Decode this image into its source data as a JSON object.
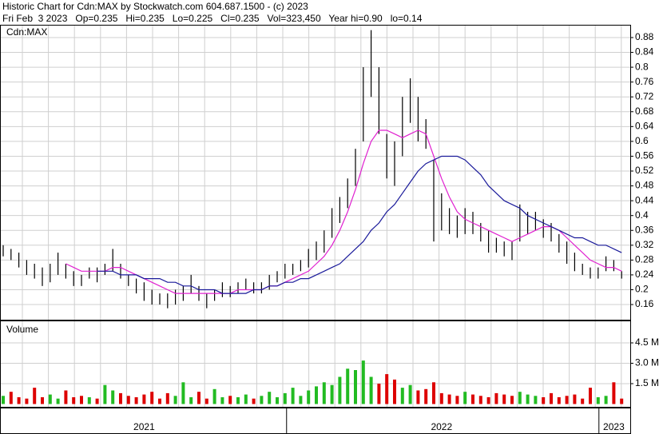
{
  "chart_data": {
    "type": "hilo",
    "title": "Historic Chart for Cdn:MAX by Stockwatch.com 604.687.1500 - (c) 2023",
    "subtitle": "Fri Feb  3 2023   Op=0.235   Hi=0.235   Lo=0.225   Cl=0.235   Vol=323,450   Year hi=0.90   lo=0.14",
    "label": "Cdn:MAX",
    "color": "#000000",
    "grid": true,
    "categories": [
      null,
      null,
      null,
      null,
      null,
      null,
      null,
      null,
      null,
      null,
      null,
      null,
      null,
      null,
      null,
      null,
      null,
      null,
      "2021",
      null,
      null,
      null,
      null,
      null,
      null,
      null,
      null,
      null,
      null,
      null,
      null,
      null,
      null,
      null,
      null,
      null,
      null,
      null,
      null,
      null,
      null,
      null,
      null,
      null,
      null,
      null,
      null,
      null,
      null,
      null,
      null,
      null,
      null,
      null,
      null,
      null,
      "2022",
      null,
      null,
      null,
      null,
      null,
      null,
      null,
      null,
      null,
      null,
      null,
      null,
      null,
      null,
      null,
      null,
      null,
      null,
      null,
      null,
      null,
      "2023",
      null
    ],
    "high": [
      0.32,
      0.31,
      0.3,
      0.28,
      0.27,
      0.26,
      0.27,
      0.3,
      0.27,
      0.25,
      0.24,
      0.26,
      0.26,
      0.27,
      0.31,
      0.27,
      0.24,
      0.23,
      0.22,
      0.2,
      0.19,
      0.19,
      0.2,
      0.21,
      0.24,
      0.21,
      0.19,
      0.2,
      0.22,
      0.21,
      0.22,
      0.23,
      0.22,
      0.22,
      0.24,
      0.25,
      0.27,
      0.27,
      0.28,
      0.31,
      0.33,
      0.36,
      0.42,
      0.45,
      0.5,
      0.58,
      0.8,
      0.9,
      0.8,
      0.62,
      0.6,
      0.72,
      0.77,
      0.72,
      0.66,
      0.55,
      0.46,
      0.42,
      0.4,
      0.42,
      0.41,
      0.38,
      0.36,
      0.34,
      0.33,
      0.33,
      0.43,
      0.41,
      0.41,
      0.39,
      0.38,
      0.35,
      0.33,
      0.3,
      0.27,
      0.26,
      0.26,
      0.29,
      0.28,
      0.25
    ],
    "low": [
      0.29,
      0.28,
      0.26,
      0.24,
      0.23,
      0.21,
      0.22,
      0.24,
      0.23,
      0.21,
      0.21,
      0.23,
      0.22,
      0.24,
      0.25,
      0.23,
      0.21,
      0.19,
      0.17,
      0.16,
      0.16,
      0.15,
      0.16,
      0.17,
      0.19,
      0.17,
      0.15,
      0.17,
      0.18,
      0.18,
      0.19,
      0.2,
      0.19,
      0.19,
      0.2,
      0.22,
      0.23,
      0.24,
      0.25,
      0.26,
      0.28,
      0.3,
      0.34,
      0.38,
      0.42,
      0.48,
      0.6,
      0.72,
      0.62,
      0.5,
      0.48,
      0.56,
      0.65,
      0.6,
      0.58,
      0.33,
      0.36,
      0.35,
      0.34,
      0.35,
      0.35,
      0.33,
      0.3,
      0.3,
      0.29,
      0.28,
      0.33,
      0.35,
      0.36,
      0.34,
      0.33,
      0.3,
      0.27,
      0.25,
      0.24,
      0.23,
      0.23,
      0.25,
      0.25,
      0.23
    ],
    "ma_short": {
      "color": "#e020d0",
      "values": [
        null,
        null,
        null,
        null,
        null,
        null,
        null,
        null,
        0.27,
        0.26,
        0.25,
        0.25,
        0.25,
        0.25,
        0.26,
        0.26,
        0.25,
        0.24,
        0.23,
        0.22,
        0.21,
        0.2,
        0.19,
        0.19,
        0.19,
        0.19,
        0.19,
        0.19,
        0.19,
        0.19,
        0.2,
        0.2,
        0.2,
        0.2,
        0.21,
        0.21,
        0.22,
        0.23,
        0.24,
        0.25,
        0.27,
        0.29,
        0.32,
        0.36,
        0.41,
        0.47,
        0.54,
        0.6,
        0.63,
        0.63,
        0.62,
        0.61,
        0.62,
        0.63,
        0.62,
        0.56,
        0.5,
        0.45,
        0.41,
        0.39,
        0.38,
        0.37,
        0.36,
        0.35,
        0.34,
        0.33,
        0.34,
        0.35,
        0.36,
        0.37,
        0.37,
        0.36,
        0.34,
        0.32,
        0.3,
        0.28,
        0.27,
        0.26,
        0.26,
        0.25
      ]
    },
    "ma_long": {
      "color": "#1a1a9a",
      "values": [
        null,
        null,
        null,
        null,
        null,
        null,
        null,
        null,
        null,
        null,
        null,
        null,
        0.25,
        0.25,
        0.25,
        0.24,
        0.24,
        0.24,
        0.23,
        0.23,
        0.23,
        0.22,
        0.22,
        0.21,
        0.21,
        0.2,
        0.2,
        0.2,
        0.19,
        0.19,
        0.19,
        0.19,
        0.2,
        0.2,
        0.21,
        0.21,
        0.22,
        0.22,
        0.23,
        0.23,
        0.24,
        0.25,
        0.26,
        0.27,
        0.29,
        0.31,
        0.33,
        0.36,
        0.38,
        0.41,
        0.43,
        0.46,
        0.49,
        0.52,
        0.54,
        0.55,
        0.56,
        0.56,
        0.56,
        0.55,
        0.53,
        0.51,
        0.48,
        0.46,
        0.44,
        0.43,
        0.42,
        0.4,
        0.39,
        0.38,
        0.37,
        0.36,
        0.35,
        0.34,
        0.34,
        0.33,
        0.32,
        0.32,
        0.31,
        0.3
      ]
    },
    "ylim": [
      0.12,
      0.9
    ],
    "yticks": [
      0.16,
      0.2,
      0.24,
      0.28,
      0.32,
      0.36,
      0.4,
      0.44,
      0.48,
      0.52,
      0.56,
      0.6,
      0.64,
      0.68,
      0.72,
      0.76,
      0.8,
      0.84,
      0.88
    ],
    "volume": {
      "label": "Volume",
      "up_color": "#22bb22",
      "down_color": "#dd0000",
      "values": [
        0.6,
        0.9,
        0.5,
        0.4,
        1.2,
        0.5,
        0.7,
        0.4,
        1.0,
        0.5,
        0.6,
        0.5,
        0.4,
        1.4,
        1.0,
        0.8,
        0.6,
        0.5,
        0.7,
        0.9,
        0.4,
        0.8,
        0.6,
        1.6,
        0.5,
        0.9,
        0.4,
        1.1,
        0.5,
        0.6,
        0.5,
        0.7,
        0.4,
        0.6,
        0.9,
        0.5,
        0.8,
        1.2,
        0.6,
        1.0,
        1.3,
        1.6,
        1.4,
        2.0,
        2.6,
        2.5,
        3.2,
        2.0,
        1.5,
        2.2,
        1.8,
        1.2,
        1.4,
        1.0,
        1.1,
        1.6,
        0.8,
        0.7,
        0.6,
        0.9,
        0.7,
        0.6,
        0.5,
        0.8,
        0.7,
        0.6,
        0.9,
        0.7,
        0.6,
        0.5,
        0.8,
        0.5,
        0.6,
        0.7,
        0.4,
        1.2,
        0.5,
        0.6,
        1.6,
        0.4
      ],
      "ylim": [
        0,
        5.6
      ],
      "yticks": [
        {
          "value": 1.5,
          "label": "1.5 M"
        },
        {
          "value": 3.0,
          "label": "3.0 M"
        },
        {
          "value": 4.5,
          "label": "4.5 M"
        }
      ]
    }
  }
}
